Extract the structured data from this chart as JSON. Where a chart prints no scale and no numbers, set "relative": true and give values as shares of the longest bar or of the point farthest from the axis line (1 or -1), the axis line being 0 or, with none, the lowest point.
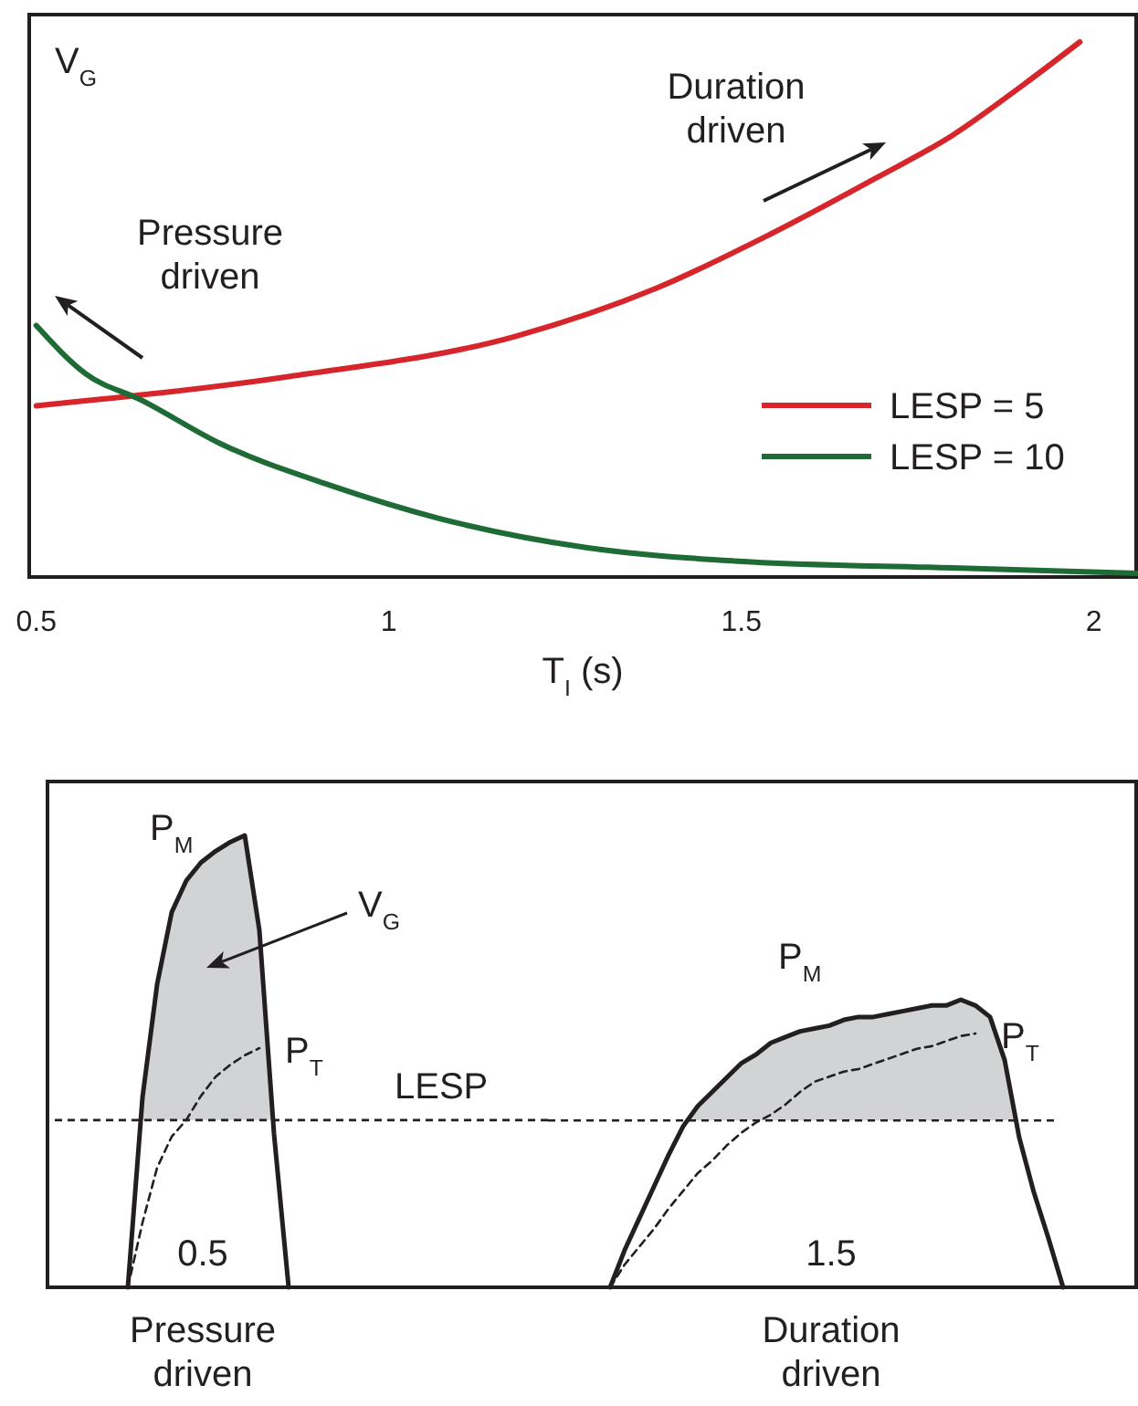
{
  "chart_data": [
    {
      "type": "line",
      "ylabel": "V$_{G}$",
      "xlabel": "T$_{I}$ (s)",
      "relative": true,
      "xlim": [
        0.49,
        2.06
      ],
      "xticks": [
        0.5,
        1,
        1.5,
        2
      ],
      "tick_labels": "x",
      "legend": "bottom right",
      "annotations": [
        "Pressure driven",
        "Duration driven"
      ],
      "series": [
        {
          "name": "LESP = 5",
          "color": "#d7262b",
          "x": [
            0.5,
            0.86,
            1.18,
            1.38,
            1.54,
            1.69,
            1.8,
            1.9,
            1.98
          ],
          "values": [
            0.32,
            0.375,
            0.45,
            0.54,
            0.64,
            0.745,
            0.826,
            0.92,
            1
          ]
        },
        {
          "name": "LESP = 10",
          "color": "#1e6b36",
          "x": [
            0.5,
            0.57,
            0.65,
            0.76,
            0.92,
            1.07,
            1.28,
            1.49,
            1.8,
            2.06
          ],
          "values": [
            0.47,
            0.38,
            0.33,
            0.25,
            0.17,
            0.11,
            0.055,
            0.03,
            0.017,
            0.007
          ]
        }
      ]
    },
    {
      "type": "line",
      "relative": true,
      "tick_labels": false,
      "categories": [
        null,
        null,
        null,
        null,
        null,
        null,
        null,
        null,
        null,
        null,
        null,
        null
      ],
      "ref_lines": [
        {
          "axis": "y",
          "value": 0.37,
          "label": "LESP",
          "line_style": "dashed"
        }
      ],
      "annotations": [
        "V$_{G}$",
        "0.5",
        "Pressure driven"
      ],
      "series": [
        {
          "name": "P$_{M}$",
          "color": "#231f20",
          "line_style": "solid",
          "values": [
            0,
            0.42,
            0.67,
            0.83,
            0.9,
            0.94,
            0.965,
            0.985,
            1,
            0.79,
            0.34,
            0
          ]
        }
      ]
    },
    {
      "type": "line",
      "relative": true,
      "tick_labels": false,
      "categories": [
        null,
        null,
        null,
        null,
        null,
        null,
        null,
        null,
        null,
        null
      ],
      "series": [
        {
          "name": "P$_{T}$",
          "color": "#231f20",
          "line_style": "dashed",
          "values": [
            0,
            0.27,
            0.5,
            0.63,
            0.7,
            0.8,
            0.88,
            0.93,
            0.97,
            1
          ]
        }
      ]
    },
    {
      "type": "line",
      "relative": true,
      "tick_labels": false,
      "categories": [
        null,
        null,
        null,
        null,
        null,
        null,
        null,
        null,
        null,
        null,
        null,
        null,
        null,
        null,
        null,
        null,
        null,
        null,
        null,
        null,
        null,
        null,
        null,
        null,
        null,
        null,
        null,
        null,
        null,
        null,
        null,
        null
      ],
      "ref_lines": [
        {
          "axis": "y",
          "value": 0.58,
          "line_style": "dashed"
        }
      ],
      "annotations": [
        "1.5",
        "Duration driven"
      ],
      "series": [
        {
          "name": "P$_{M}$",
          "color": "#231f20",
          "line_style": "solid",
          "values": [
            0,
            0.13,
            0.24,
            0.35,
            0.46,
            0.56,
            0.63,
            0.68,
            0.73,
            0.78,
            0.81,
            0.85,
            0.87,
            0.89,
            0.9,
            0.91,
            0.93,
            0.94,
            0.94,
            0.95,
            0.96,
            0.97,
            0.98,
            0.98,
            1,
            0.98,
            0.94,
            0.79,
            0.52,
            0.33,
            0.17,
            0
          ]
        }
      ]
    },
    {
      "type": "line",
      "relative": true,
      "tick_labels": false,
      "categories": [
        null,
        null,
        null,
        null,
        null,
        null,
        null,
        null,
        null,
        null,
        null,
        null,
        null,
        null,
        null,
        null,
        null,
        null,
        null,
        null,
        null,
        null,
        null,
        null,
        null,
        null
      ],
      "series": [
        {
          "name": "P$_{T}$",
          "color": "#231f20",
          "line_style": "dashed",
          "values": [
            0,
            0.09,
            0.16,
            0.23,
            0.31,
            0.38,
            0.45,
            0.5,
            0.56,
            0.61,
            0.65,
            0.68,
            0.72,
            0.77,
            0.81,
            0.83,
            0.85,
            0.86,
            0.88,
            0.9,
            0.92,
            0.94,
            0.95,
            0.97,
            0.99,
            1
          ]
        }
      ]
    }
  ]
}
